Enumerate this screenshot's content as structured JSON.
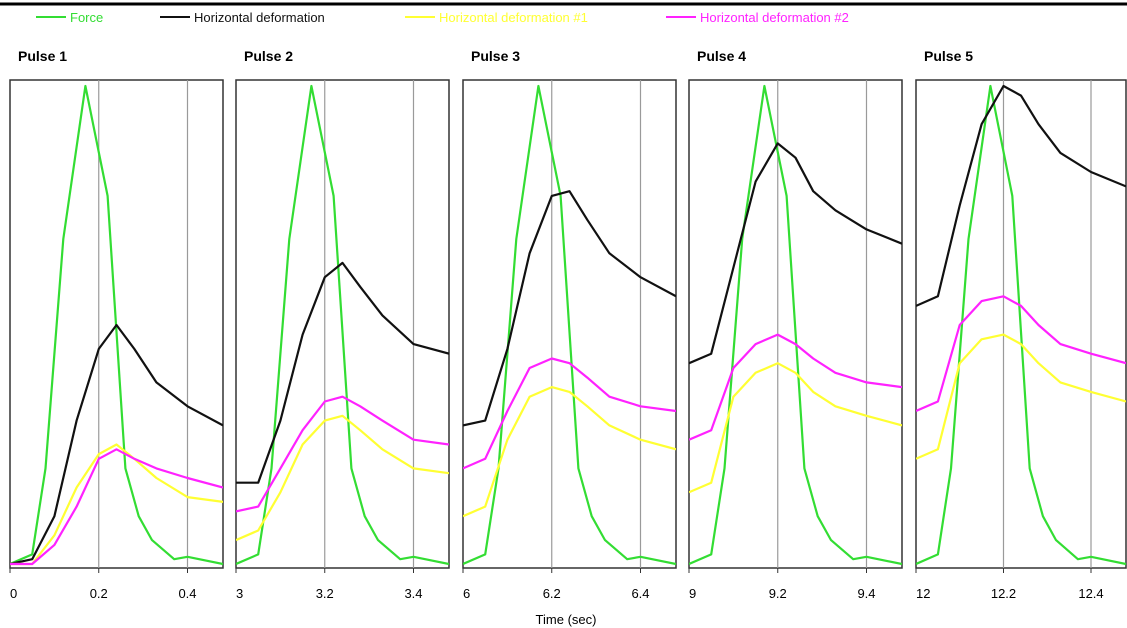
{
  "chart_data": {
    "type": "line",
    "xlabel": "Time (sec)",
    "ylabel": "",
    "grid": true,
    "legend": {
      "position": "top",
      "entries": [
        {
          "label": "Force",
          "color": "#33dd33"
        },
        {
          "label": "Horizontal deformation",
          "color": "#111111"
        },
        {
          "label": "Horizontal deformation #1",
          "color": "#ffff33"
        },
        {
          "label": "Horizontal deformation #2",
          "color": "#ff22ff"
        }
      ]
    },
    "ylim": [
      0,
      1
    ],
    "panels": [
      {
        "title": "Pulse 1",
        "xlim": [
          0,
          0.48
        ],
        "xticks": [
          0,
          0.2,
          0.4
        ],
        "xtick_labels": [
          "0",
          "0.2",
          "0.4"
        ],
        "series": [
          {
            "name": "Force",
            "color": "#33dd33",
            "x": [
              0,
              0.05,
              0.08,
              0.12,
              0.17,
              0.22,
              0.26,
              0.29,
              0.32,
              0.37,
              0.4,
              0.48
            ],
            "y": [
              0,
              0.02,
              0.2,
              0.68,
              1.0,
              0.77,
              0.2,
              0.1,
              0.05,
              0.01,
              0.015,
              0.0
            ]
          },
          {
            "name": "Horizontal deformation",
            "color": "#111111",
            "x": [
              0,
              0.05,
              0.1,
              0.15,
              0.2,
              0.24,
              0.28,
              0.33,
              0.4,
              0.48
            ],
            "y": [
              0,
              0.01,
              0.1,
              0.3,
              0.45,
              0.5,
              0.45,
              0.38,
              0.33,
              0.29
            ]
          },
          {
            "name": "Horizontal deformation #1",
            "color": "#ffff33",
            "x": [
              0,
              0.05,
              0.1,
              0.15,
              0.2,
              0.24,
              0.28,
              0.33,
              0.4,
              0.48
            ],
            "y": [
              0,
              0.0,
              0.06,
              0.16,
              0.23,
              0.25,
              0.22,
              0.18,
              0.14,
              0.13
            ]
          },
          {
            "name": "Horizontal deformation #2",
            "color": "#ff22ff",
            "x": [
              0,
              0.05,
              0.1,
              0.15,
              0.2,
              0.24,
              0.28,
              0.33,
              0.4,
              0.48
            ],
            "y": [
              0,
              0.0,
              0.04,
              0.12,
              0.22,
              0.24,
              0.22,
              0.2,
              0.18,
              0.16
            ]
          }
        ]
      },
      {
        "title": "Pulse 2",
        "xlim": [
          3,
          3.48
        ],
        "xticks": [
          3,
          3.2,
          3.4
        ],
        "xtick_labels": [
          "3",
          "3.2",
          "3.4"
        ],
        "series": [
          {
            "name": "Force",
            "color": "#33dd33",
            "x": [
              3,
              3.05,
              3.08,
              3.12,
              3.17,
              3.22,
              3.26,
              3.29,
              3.32,
              3.37,
              3.4,
              3.48
            ],
            "y": [
              0,
              0.02,
              0.2,
              0.68,
              1.0,
              0.77,
              0.2,
              0.1,
              0.05,
              0.01,
              0.015,
              0.0
            ]
          },
          {
            "name": "Horizontal deformation",
            "color": "#111111",
            "x": [
              3,
              3.05,
              3.1,
              3.15,
              3.2,
              3.24,
              3.28,
              3.33,
              3.4,
              3.48
            ],
            "y": [
              0.17,
              0.17,
              0.3,
              0.48,
              0.6,
              0.63,
              0.58,
              0.52,
              0.46,
              0.44
            ]
          },
          {
            "name": "Horizontal deformation #1",
            "color": "#ffff33",
            "x": [
              3,
              3.05,
              3.1,
              3.15,
              3.2,
              3.24,
              3.28,
              3.33,
              3.4,
              3.48
            ],
            "y": [
              0.05,
              0.07,
              0.15,
              0.25,
              0.3,
              0.31,
              0.28,
              0.24,
              0.2,
              0.19
            ]
          },
          {
            "name": "Horizontal deformation #2",
            "color": "#ff22ff",
            "x": [
              3,
              3.05,
              3.1,
              3.15,
              3.2,
              3.24,
              3.28,
              3.33,
              3.4,
              3.48
            ],
            "y": [
              0.11,
              0.12,
              0.2,
              0.28,
              0.34,
              0.35,
              0.33,
              0.3,
              0.26,
              0.25
            ]
          }
        ]
      },
      {
        "title": "Pulse 3",
        "xlim": [
          6,
          6.48
        ],
        "xticks": [
          6,
          6.2,
          6.4
        ],
        "xtick_labels": [
          "6",
          "6.2",
          "6.4"
        ],
        "series": [
          {
            "name": "Force",
            "color": "#33dd33",
            "x": [
              6,
              6.05,
              6.08,
              6.12,
              6.17,
              6.22,
              6.26,
              6.29,
              6.32,
              6.37,
              6.4,
              6.48
            ],
            "y": [
              0,
              0.02,
              0.2,
              0.68,
              1.0,
              0.77,
              0.2,
              0.1,
              0.05,
              0.01,
              0.015,
              0.0
            ]
          },
          {
            "name": "Horizontal deformation",
            "color": "#111111",
            "x": [
              6,
              6.05,
              6.1,
              6.15,
              6.2,
              6.24,
              6.28,
              6.33,
              6.4,
              6.48
            ],
            "y": [
              0.29,
              0.3,
              0.45,
              0.65,
              0.77,
              0.78,
              0.72,
              0.65,
              0.6,
              0.56
            ]
          },
          {
            "name": "Horizontal deformation #1",
            "color": "#ffff33",
            "x": [
              6,
              6.05,
              6.1,
              6.15,
              6.2,
              6.24,
              6.28,
              6.33,
              6.4,
              6.48
            ],
            "y": [
              0.1,
              0.12,
              0.26,
              0.35,
              0.37,
              0.36,
              0.33,
              0.29,
              0.26,
              0.24
            ]
          },
          {
            "name": "Horizontal deformation #2",
            "color": "#ff22ff",
            "x": [
              6,
              6.05,
              6.1,
              6.15,
              6.2,
              6.24,
              6.28,
              6.33,
              6.4,
              6.48
            ],
            "y": [
              0.2,
              0.22,
              0.32,
              0.41,
              0.43,
              0.42,
              0.39,
              0.35,
              0.33,
              0.32
            ]
          }
        ]
      },
      {
        "title": "Pulse 4",
        "xlim": [
          9,
          9.48
        ],
        "xticks": [
          9,
          9.2,
          9.4
        ],
        "xtick_labels": [
          "9",
          "9.2",
          "9.4"
        ],
        "series": [
          {
            "name": "Force",
            "color": "#33dd33",
            "x": [
              9,
              9.05,
              9.08,
              9.12,
              9.17,
              9.22,
              9.26,
              9.29,
              9.32,
              9.37,
              9.4,
              9.48
            ],
            "y": [
              0,
              0.02,
              0.2,
              0.68,
              1.0,
              0.77,
              0.2,
              0.1,
              0.05,
              0.01,
              0.015,
              0.0
            ]
          },
          {
            "name": "Horizontal deformation",
            "color": "#111111",
            "x": [
              9,
              9.05,
              9.1,
              9.15,
              9.2,
              9.24,
              9.28,
              9.33,
              9.4,
              9.48
            ],
            "y": [
              0.42,
              0.44,
              0.62,
              0.8,
              0.88,
              0.85,
              0.78,
              0.74,
              0.7,
              0.67
            ]
          },
          {
            "name": "Horizontal deformation #1",
            "color": "#ffff33",
            "x": [
              9,
              9.05,
              9.1,
              9.15,
              9.2,
              9.24,
              9.28,
              9.33,
              9.4,
              9.48
            ],
            "y": [
              0.15,
              0.17,
              0.35,
              0.4,
              0.42,
              0.4,
              0.36,
              0.33,
              0.31,
              0.29
            ]
          },
          {
            "name": "Horizontal deformation #2",
            "color": "#ff22ff",
            "x": [
              9,
              9.05,
              9.1,
              9.15,
              9.2,
              9.24,
              9.28,
              9.33,
              9.4,
              9.48
            ],
            "y": [
              0.26,
              0.28,
              0.41,
              0.46,
              0.48,
              0.46,
              0.43,
              0.4,
              0.38,
              0.37
            ]
          }
        ]
      },
      {
        "title": "Pulse 5",
        "xlim": [
          12,
          12.48
        ],
        "xticks": [
          12,
          12.2,
          12.4
        ],
        "xtick_labels": [
          "12",
          "12.2",
          "12.4"
        ],
        "series": [
          {
            "name": "Force",
            "color": "#33dd33",
            "x": [
              12,
              12.05,
              12.08,
              12.12,
              12.17,
              12.22,
              12.26,
              12.29,
              12.32,
              12.37,
              12.4,
              12.48
            ],
            "y": [
              0,
              0.02,
              0.2,
              0.68,
              1.0,
              0.77,
              0.2,
              0.1,
              0.05,
              0.01,
              0.015,
              0.0
            ]
          },
          {
            "name": "Horizontal deformation",
            "color": "#111111",
            "x": [
              12,
              12.05,
              12.1,
              12.15,
              12.2,
              12.24,
              12.28,
              12.33,
              12.4,
              12.48
            ],
            "y": [
              0.54,
              0.56,
              0.75,
              0.92,
              1.0,
              0.98,
              0.92,
              0.86,
              0.82,
              0.79
            ]
          },
          {
            "name": "Horizontal deformation #1",
            "color": "#ffff33",
            "x": [
              12,
              12.05,
              12.1,
              12.15,
              12.2,
              12.24,
              12.28,
              12.33,
              12.4,
              12.48
            ],
            "y": [
              0.22,
              0.24,
              0.42,
              0.47,
              0.48,
              0.46,
              0.42,
              0.38,
              0.36,
              0.34
            ]
          },
          {
            "name": "Horizontal deformation #2",
            "color": "#ff22ff",
            "x": [
              12,
              12.05,
              12.1,
              12.15,
              12.2,
              12.24,
              12.28,
              12.33,
              12.4,
              12.48
            ],
            "y": [
              0.32,
              0.34,
              0.5,
              0.55,
              0.56,
              0.54,
              0.5,
              0.46,
              0.44,
              0.42
            ]
          }
        ]
      }
    ]
  }
}
